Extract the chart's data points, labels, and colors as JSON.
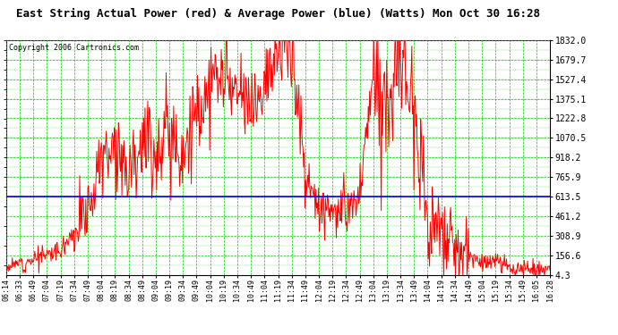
{
  "title": "East String Actual Power (red) & Average Power (blue) (Watts) Mon Oct 30 16:28",
  "copyright": "Copyright 2006 Cartronics.com",
  "yticks": [
    4.3,
    156.6,
    308.9,
    461.2,
    613.5,
    765.9,
    918.2,
    1070.5,
    1222.8,
    1375.1,
    1527.4,
    1679.7,
    1832.0
  ],
  "ymin": 4.3,
  "ymax": 1832.0,
  "average_power": 613.5,
  "background_color": "#ffffff",
  "grid_color": "#00cc00",
  "line_color_actual": "#ff0000",
  "line_color_avg": "#0000ff",
  "xtick_labels": [
    "06:14",
    "06:33",
    "06:49",
    "07:04",
    "07:19",
    "07:34",
    "07:49",
    "08:04",
    "08:19",
    "08:34",
    "08:49",
    "09:04",
    "09:19",
    "09:34",
    "09:49",
    "10:04",
    "10:19",
    "10:34",
    "10:49",
    "11:04",
    "11:19",
    "11:34",
    "11:49",
    "12:04",
    "12:19",
    "12:34",
    "12:49",
    "13:04",
    "13:19",
    "13:34",
    "13:49",
    "14:04",
    "14:19",
    "14:34",
    "14:49",
    "15:04",
    "15:19",
    "15:34",
    "15:49",
    "16:05",
    "16:28"
  ],
  "power_vals": [
    60,
    100,
    130,
    160,
    200,
    350,
    500,
    900,
    1050,
    850,
    1100,
    950,
    1150,
    950,
    1250,
    1450,
    1550,
    1350,
    1300,
    1550,
    1700,
    1832,
    750,
    550,
    500,
    480,
    620,
    1550,
    1350,
    1650,
    1450,
    380,
    320,
    180,
    140,
    110,
    90,
    70,
    55,
    25,
    15
  ]
}
